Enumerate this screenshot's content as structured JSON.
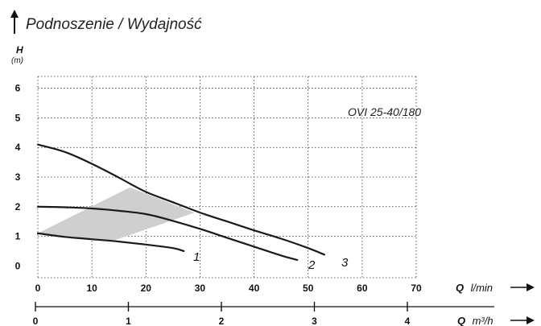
{
  "chart_data": {
    "type": "line",
    "title": "Podnoszenie / Wydajność",
    "model": "OVI 25-40/180",
    "y_axis": {
      "label": "H",
      "unit": "(m)",
      "ticks": [
        0,
        1,
        2,
        3,
        4,
        5,
        6
      ],
      "range": [
        -0.4,
        6.4
      ]
    },
    "x_axis_primary": {
      "label": "Q",
      "unit": "l/min",
      "ticks": [
        0,
        10,
        20,
        30,
        40,
        50,
        60,
        70
      ],
      "range": [
        0,
        70
      ]
    },
    "x_axis_secondary": {
      "label": "Q",
      "unit": "m³/h",
      "ticks": [
        0,
        1,
        2,
        3,
        4
      ]
    },
    "grid": true,
    "series": [
      {
        "name": "1",
        "x": [
          0,
          5,
          10,
          15,
          20,
          25,
          27
        ],
        "y": [
          1.1,
          0.98,
          0.9,
          0.82,
          0.72,
          0.6,
          0.5
        ]
      },
      {
        "name": "2",
        "x": [
          0,
          5,
          10,
          15,
          20,
          25,
          30,
          35,
          40,
          45,
          48
        ],
        "y": [
          2.0,
          1.98,
          1.94,
          1.86,
          1.75,
          1.52,
          1.25,
          0.95,
          0.65,
          0.35,
          0.2
        ]
      },
      {
        "name": "3",
        "x": [
          0,
          5,
          10,
          15,
          20,
          25,
          30,
          35,
          40,
          45,
          50,
          53
        ],
        "y": [
          4.1,
          3.85,
          3.45,
          2.98,
          2.5,
          2.15,
          1.8,
          1.5,
          1.2,
          0.92,
          0.6,
          0.38
        ]
      }
    ],
    "shaded_region": {
      "x": [
        0,
        17,
        29,
        14,
        0
      ],
      "y": [
        1.1,
        2.65,
        1.8,
        0.85,
        1.1
      ]
    },
    "curve_labels": [
      "1",
      "2",
      "3"
    ]
  },
  "colors": {
    "curve": "#1a1a1a",
    "shade": "#cfcfcf",
    "grid": "#333333"
  }
}
